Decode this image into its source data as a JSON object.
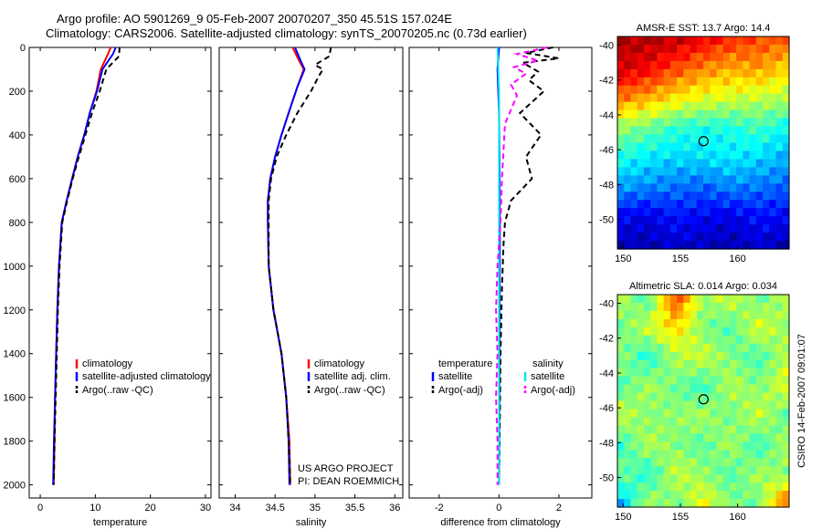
{
  "header": {
    "line1": "Argo profile: AO 5901269_9 05-Feb-2007 20070207_350 45.51S 157.024E",
    "line2": "Climatology: CARS2006. Satellite-adjusted climatology: synTS_20070205.nc (0.73d earlier)"
  },
  "chart_data": [
    {
      "type": "line",
      "id": "temperature",
      "xlabel": "temperature",
      "xlim": [
        -2,
        31
      ],
      "xticks": [
        0,
        10,
        20,
        30
      ],
      "ylim": [
        0,
        2060
      ],
      "yticks": [
        0,
        200,
        400,
        600,
        800,
        1000,
        1200,
        1400,
        1600,
        1800,
        2000
      ],
      "legend": [
        "climatology",
        "satellite-adjusted climatology",
        "Argo(..raw -QC)"
      ],
      "series": [
        {
          "name": "climatology",
          "color": "#ff0000",
          "dash": "",
          "x": [
            12.8,
            12.3,
            11.0,
            10.2,
            9.0,
            8.0,
            6.8,
            5.8,
            4.8,
            3.9,
            3.4,
            3.1,
            2.9,
            2.7,
            2.6,
            2.45
          ],
          "y": [
            0,
            30,
            100,
            200,
            300,
            400,
            500,
            600,
            700,
            800,
            1000,
            1200,
            1400,
            1600,
            1800,
            2000
          ]
        },
        {
          "name": "satellite-adjusted climatology",
          "color": "#0000ff",
          "dash": "",
          "x": [
            13.7,
            13.2,
            11.3,
            10.3,
            9.0,
            8.0,
            6.8,
            5.8,
            4.8,
            3.9,
            3.4,
            3.1,
            2.9,
            2.7,
            2.5,
            2.35
          ],
          "y": [
            0,
            30,
            100,
            200,
            300,
            400,
            500,
            600,
            700,
            800,
            1000,
            1200,
            1400,
            1600,
            1800,
            2000
          ]
        },
        {
          "name": "Argo(..raw -QC)",
          "color": "#000000",
          "dash": "6,4",
          "x": [
            14.4,
            14.3,
            12.0,
            10.8,
            9.4,
            8.2,
            7.0,
            5.9,
            4.9,
            4.0,
            3.5,
            3.2,
            3.0,
            2.8,
            2.6,
            2.45
          ],
          "y": [
            0,
            40,
            100,
            200,
            300,
            400,
            500,
            600,
            700,
            800,
            1000,
            1200,
            1400,
            1600,
            1800,
            2000
          ]
        }
      ]
    },
    {
      "type": "line",
      "id": "salinity",
      "xlabel": "salinity",
      "xlim": [
        33.8,
        36.1
      ],
      "xticks": [
        34,
        34.5,
        35,
        35.5,
        36
      ],
      "xticklabels": [
        "34",
        "34.5",
        "35",
        "35.5",
        "36"
      ],
      "ylim": [
        0,
        2060
      ],
      "legend": [
        "climatology",
        "satellite adj. clim.",
        "Argo(..raw -QC)"
      ],
      "annotation": [
        "US ARGO PROJECT",
        "PI: DEAN ROEMMICH"
      ],
      "series": [
        {
          "name": "climatology",
          "color": "#ff0000",
          "dash": "",
          "x": [
            34.72,
            34.8,
            34.86,
            34.78,
            34.67,
            34.58,
            34.5,
            34.44,
            34.41,
            34.41,
            34.42,
            34.48,
            34.58,
            34.64,
            34.68,
            34.69
          ],
          "y": [
            0,
            60,
            100,
            180,
            300,
            400,
            500,
            600,
            700,
            800,
            1000,
            1200,
            1400,
            1600,
            1800,
            2000
          ]
        },
        {
          "name": "satellite adj. clim.",
          "color": "#0000ff",
          "dash": "",
          "x": [
            34.75,
            34.82,
            34.87,
            34.78,
            34.67,
            34.58,
            34.5,
            34.44,
            34.41,
            34.41,
            34.42,
            34.48,
            34.58,
            34.64,
            34.67,
            34.68
          ],
          "y": [
            0,
            60,
            100,
            180,
            300,
            400,
            500,
            600,
            700,
            800,
            1000,
            1200,
            1400,
            1600,
            1800,
            2000
          ]
        },
        {
          "name": "Argo(..raw -QC)",
          "color": "#000000",
          "dash": "6,4",
          "x": [
            35.2,
            35.18,
            35.0,
            35.1,
            35.05,
            34.95,
            34.78,
            34.64,
            34.52,
            34.45,
            34.42,
            34.42,
            34.42,
            34.48,
            34.58,
            34.64,
            34.67,
            34.69
          ],
          "y": [
            0,
            40,
            80,
            100,
            130,
            200,
            300,
            400,
            500,
            600,
            700,
            800,
            1000,
            1200,
            1400,
            1600,
            1800,
            2000
          ]
        }
      ]
    },
    {
      "type": "line",
      "id": "difference",
      "xlabel": "difference from climatology",
      "xlim": [
        -3,
        3.1
      ],
      "xticks": [
        -2,
        0,
        2
      ],
      "ylim": [
        0,
        2060
      ],
      "legend_headers": [
        "temperature",
        "salinity"
      ],
      "legend": [
        "satellite",
        "Argo(-adj)",
        "satellite",
        "Argo(-adj)"
      ],
      "series": [
        {
          "name": "temperature satellite",
          "color": "#0000ff",
          "dash": "",
          "x": [
            0.0,
            -0.05,
            0.0,
            0.02,
            0.03,
            0.02,
            0.01,
            0.0
          ],
          "y": [
            0,
            100,
            300,
            600,
            900,
            1300,
            1700,
            2000
          ]
        },
        {
          "name": "temperature Argo(-adj)",
          "color": "#000000",
          "dash": "6,4",
          "x": [
            1.8,
            0.9,
            2.0,
            0.8,
            1.3,
            1.0,
            1.5,
            0.7,
            1.4,
            0.9,
            1.1,
            0.4,
            0.2,
            0.15,
            0.1,
            0.05,
            0.03,
            0.0
          ],
          "y": [
            0,
            25,
            50,
            70,
            110,
            150,
            200,
            300,
            400,
            500,
            600,
            700,
            800,
            900,
            1100,
            1400,
            1700,
            2000
          ]
        },
        {
          "name": "salinity satellite",
          "color": "#00e5ee",
          "dash": "",
          "x": [
            -0.05,
            0.0,
            0.0,
            0.0,
            0.0,
            0.0
          ],
          "y": [
            0,
            200,
            600,
            1000,
            1500,
            2000
          ]
        },
        {
          "name": "salinity Argo(-adj)",
          "color": "#ff00ff",
          "dash": "6,4",
          "x": [
            1.6,
            0.6,
            1.3,
            0.5,
            0.9,
            0.4,
            0.6,
            0.2,
            0.1,
            0.05,
            -0.05,
            -0.1,
            -0.05,
            -0.1,
            -0.05,
            -0.05
          ],
          "y": [
            0,
            30,
            60,
            90,
            120,
            170,
            220,
            350,
            600,
            800,
            1000,
            1200,
            1400,
            1600,
            1800,
            2000
          ]
        }
      ]
    },
    {
      "type": "heatmap",
      "id": "sst",
      "title": "AMSR-E SST: 13.7 Argo: 14.4",
      "xlim": [
        149.5,
        164.5
      ],
      "ylim": [
        -51.7,
        -39.5
      ],
      "xticks": [
        150,
        155,
        160
      ],
      "yticks": [
        -40,
        -42,
        -44,
        -46,
        -48,
        -50
      ],
      "marker": {
        "lon": 157.024,
        "lat": -45.51
      },
      "field_values": [
        [
          0.95,
          0.95,
          0.93,
          0.88,
          0.83,
          0.8,
          0.78
        ],
        [
          0.92,
          0.88,
          0.8,
          0.74,
          0.7,
          0.72,
          0.66
        ],
        [
          0.75,
          0.7,
          0.64,
          0.6,
          0.58,
          0.56,
          0.55
        ],
        [
          0.52,
          0.48,
          0.42,
          0.4,
          0.4,
          0.44,
          0.38
        ],
        [
          0.4,
          0.36,
          0.34,
          0.35,
          0.36,
          0.34,
          0.3
        ],
        [
          0.28,
          0.26,
          0.24,
          0.22,
          0.26,
          0.24,
          0.22
        ],
        [
          0.12,
          0.1,
          0.14,
          0.12,
          0.1,
          0.14,
          0.12
        ],
        [
          0.06,
          0.05,
          0.08,
          0.06,
          0.05,
          0.08,
          0.05
        ]
      ]
    },
    {
      "type": "heatmap",
      "id": "sla",
      "title": "Altimetric SLA: 0.014 Argo: 0.034",
      "xlim": [
        149.5,
        164.5
      ],
      "ylim": [
        -51.7,
        -39.5
      ],
      "xticks": [
        150,
        155,
        160
      ],
      "yticks": [
        -40,
        -42,
        -44,
        -46,
        -48,
        -50
      ],
      "marker": {
        "lon": 157.024,
        "lat": -45.51
      },
      "side_label": "CSIRO 14-Feb-2007 09:01:07",
      "field_values": [
        [
          0.55,
          0.45,
          0.82,
          0.52,
          0.58,
          0.48,
          0.55
        ],
        [
          0.48,
          0.58,
          0.66,
          0.5,
          0.45,
          0.6,
          0.52
        ],
        [
          0.52,
          0.4,
          0.55,
          0.58,
          0.5,
          0.44,
          0.56
        ],
        [
          0.45,
          0.55,
          0.48,
          0.42,
          0.56,
          0.5,
          0.6
        ],
        [
          0.58,
          0.5,
          0.52,
          0.55,
          0.48,
          0.58,
          0.46
        ],
        [
          0.42,
          0.56,
          0.5,
          0.46,
          0.55,
          0.42,
          0.55
        ],
        [
          0.5,
          0.4,
          0.58,
          0.52,
          0.45,
          0.55,
          0.5
        ],
        [
          0.3,
          0.55,
          0.48,
          0.62,
          0.5,
          0.48,
          0.78
        ]
      ]
    }
  ]
}
